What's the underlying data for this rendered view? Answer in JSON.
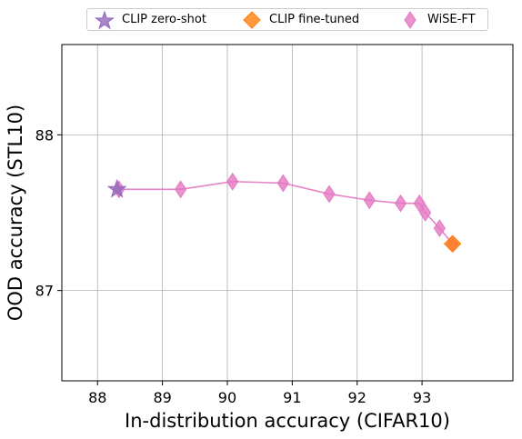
{
  "chart_data": {
    "type": "scatter",
    "xlabel": "In-distribution accuracy (CIFAR10)",
    "ylabel": "OOD accuracy (STL10)",
    "xlim": [
      87.45,
      94.4
    ],
    "ylim": [
      86.42,
      88.58
    ],
    "xticks": [
      88,
      89,
      90,
      91,
      92,
      93
    ],
    "yticks": [
      87,
      88
    ],
    "grid": true,
    "legend_placement": "top-center",
    "series": [
      {
        "name": "CLIP zero-shot",
        "marker": "star",
        "color": "#9467bd",
        "x": [
          88.3
        ],
        "y": [
          87.65
        ]
      },
      {
        "name": "CLIP fine-tuned",
        "marker": "diamond",
        "color": "#ff7f0e",
        "x": [
          93.47
        ],
        "y": [
          87.3
        ]
      },
      {
        "name": "WiSE-FT",
        "marker": "thin-diamond",
        "color": "#e377c2",
        "line": true,
        "x": [
          88.33,
          89.28,
          90.08,
          90.86,
          91.57,
          92.19,
          92.67,
          92.96,
          93.05,
          93.27,
          93.47
        ],
        "y": [
          87.65,
          87.65,
          87.7,
          87.69,
          87.62,
          87.58,
          87.56,
          87.56,
          87.5,
          87.4,
          87.3
        ]
      }
    ]
  }
}
